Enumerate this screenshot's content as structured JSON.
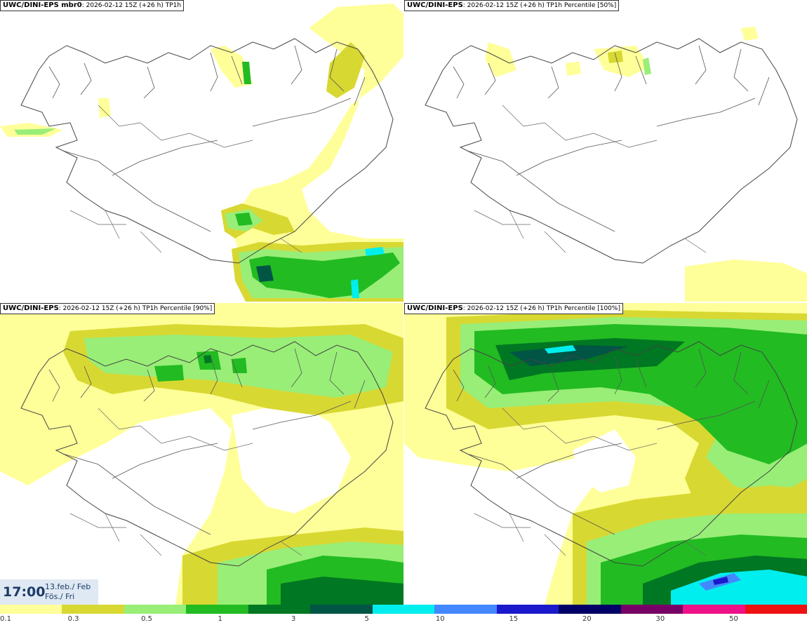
{
  "panels": [
    {
      "model": "UWC/DINI-EPS mbr0",
      "subtitle": ": 2026-02-12 15Z (+26 h) TP1h",
      "percentile": null
    },
    {
      "model": "UWC/DINI-EPS",
      "subtitle": ": 2026-02-12 15Z (+26 h) TP1h Percentile [50%]",
      "percentile": "50%"
    },
    {
      "model": "UWC/DINI-EPS",
      "subtitle": ": 2026-02-12 15Z (+26 h) TP1h Percentile [90%]",
      "percentile": "90%"
    },
    {
      "model": "UWC/DINI-EPS",
      "subtitle": ": 2026-02-12 15Z (+26 h) TP1h Percentile [100%]",
      "percentile": "100%"
    }
  ],
  "valid_time": {
    "time": "17:00",
    "date": "13.feb./ Feb",
    "weekday": "Fös./ Fri"
  },
  "legend": {
    "colors": [
      "#ffff99",
      "#d8d832",
      "#99ee77",
      "#22bb22",
      "#007722",
      "#005544",
      "#00eeee",
      "#4488ff",
      "#1a1acc",
      "#000066",
      "#770066",
      "#ee1188",
      "#ee1111"
    ],
    "ticks": [
      "0.1",
      "0.3",
      "0.5",
      "1",
      "3",
      "5",
      "10",
      "15",
      "20",
      "30",
      "50"
    ]
  }
}
